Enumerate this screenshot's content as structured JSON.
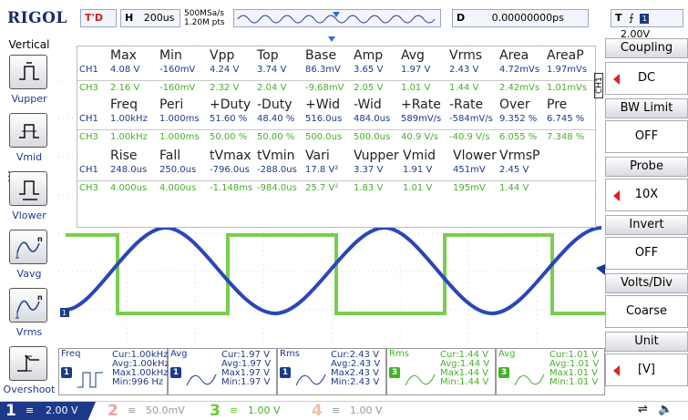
{
  "topbar": {
    "brand": "RIGOL",
    "trig_status": "T'D",
    "horizontal_label": "H",
    "timebase": "200us",
    "sample_rate": "500MSa/s",
    "memory_depth": "1.20M pts",
    "delay_label": "D",
    "delay_value": "0.00000000ps",
    "trigger_label": "T",
    "trigger_source": "1",
    "trigger_level": "2.00V"
  },
  "left_panel": {
    "title": "Vertical",
    "items": [
      {
        "label": "Vupper",
        "icon": "vupper-icon"
      },
      {
        "label": "Vmid",
        "icon": "vmid-icon"
      },
      {
        "label": "Vlower",
        "icon": "vlower-icon"
      },
      {
        "label": "Vavg",
        "icon": "vavg-icon"
      },
      {
        "label": "Vrms",
        "icon": "vrms-icon"
      },
      {
        "label": "Overshoot",
        "icon": "overshoot-icon"
      }
    ]
  },
  "right_panel": {
    "coupling_title": "Coupling",
    "coupling_value": "DC",
    "bwlimit_title": "BW Limit",
    "bwlimit_value": "OFF",
    "probe_title": "Probe",
    "probe_value": "10X",
    "invert_title": "Invert",
    "invert_value": "OFF",
    "voltsdiv_title": "Volts/Div",
    "voltsdiv_value": "Coarse",
    "unit_title": "Unit",
    "unit_value": "[V]",
    "channel_tab": "CH1"
  },
  "measurements": {
    "group1_headers": [
      "Max",
      "Min",
      "Vpp",
      "Top",
      "Base",
      "Amp",
      "Avg",
      "Vrms",
      "Area",
      "AreaP"
    ],
    "group1_ch1": [
      "CH1",
      "4.08 V",
      "-160mV",
      "4.24 V",
      "3.74 V",
      "86.3mV",
      "3.65 V",
      "1.97 V",
      "2.43 V",
      "4.72mVs",
      "1.97mVs"
    ],
    "group1_ch3": [
      "CH3",
      "2.16 V",
      "-160mV",
      "2.32 V",
      "2.04 V",
      "-9.68mV",
      "2.05 V",
      "1.01 V",
      "1.44 V",
      "2.42mVs",
      "1.01mVs"
    ],
    "group2_headers": [
      "Freq",
      "Peri",
      "+Duty",
      "-Duty",
      "+Wid",
      "-Wid",
      "+Rate",
      "-Rate",
      "Over",
      "Pre"
    ],
    "group2_ch1": [
      "CH1",
      "1.00kHz",
      "1.000ms",
      "51.60 %",
      "48.40 %",
      "516.0us",
      "484.0us",
      "589mV/s",
      "-584mV/s",
      "9.352 %",
      "6.745 %"
    ],
    "group2_ch3": [
      "CH3",
      "1.00kHz",
      "1.000ms",
      "50.00 %",
      "50.00 %",
      "500.0us",
      "500.0us",
      "40.9 V/s",
      "-40.9 V/s",
      "6.055 %",
      "7.348 %"
    ],
    "group3_headers": [
      "Rise",
      "Fall",
      "tVmax",
      "tVmin",
      "Vari",
      "Vupper",
      "Vmid",
      "Vlower",
      "VrmsP"
    ],
    "group3_ch1": [
      "CH1",
      "248.0us",
      "250.0us",
      "-796.0us",
      "-288.0us",
      "17.8 V²",
      "3.37 V",
      "1.91 V",
      "451mV",
      "2.45 V"
    ],
    "group3_ch3": [
      "CH3",
      "4.000us",
      "4.000us",
      "-1.148ms",
      "-984.0us",
      "25.7 V²",
      "1.83 V",
      "1.01 V",
      "195mV",
      "1.44 V"
    ]
  },
  "tiles": [
    {
      "type": "Freq",
      "channel": "1",
      "cur": "Cur:1.00kHz",
      "avg": "Avg:1.00kHz",
      "max": "Max1.00kHz",
      "min": "Min:996 Hz",
      "color": "#1d3a8a"
    },
    {
      "type": "Avg",
      "channel": "1",
      "cur": "Cur:1.97 V",
      "avg": "Avg:1.97 V",
      "max": "Max1.97 V",
      "min": "Min:1.97 V",
      "color": "#1d3a8a"
    },
    {
      "type": "Rms",
      "channel": "1",
      "cur": "Cur:2.43 V",
      "avg": "Avg:2.43 V",
      "max": "Max2.43 V",
      "min": "Min:2.43 V",
      "color": "#1d3a8a"
    },
    {
      "type": "Rms",
      "channel": "3",
      "cur": "Cur:1.44 V",
      "avg": "Avg:1.44 V",
      "max": "Max1.44 V",
      "min": "Min:1.44 V",
      "color": "#45b02a"
    },
    {
      "type": "Avg",
      "channel": "3",
      "cur": "Cur:1.01 V",
      "avg": "Avg:1.01 V",
      "max": "Max1.01 V",
      "min": "Min:1.01 V",
      "color": "#45b02a"
    }
  ],
  "statusbar": {
    "ch1_num": "1",
    "ch1_scale": "2.00 V",
    "ch2_num": "2",
    "ch2_scale": "50.0mV",
    "ch3_num": "3",
    "ch3_scale": "1.00 V",
    "ch4_num": "4",
    "ch4_scale": "1.00 V"
  },
  "colors": {
    "ch1": "#1d3a8a",
    "ch3": "#45b02a",
    "ch2": "#e05050",
    "ch4": "#e0a070"
  }
}
